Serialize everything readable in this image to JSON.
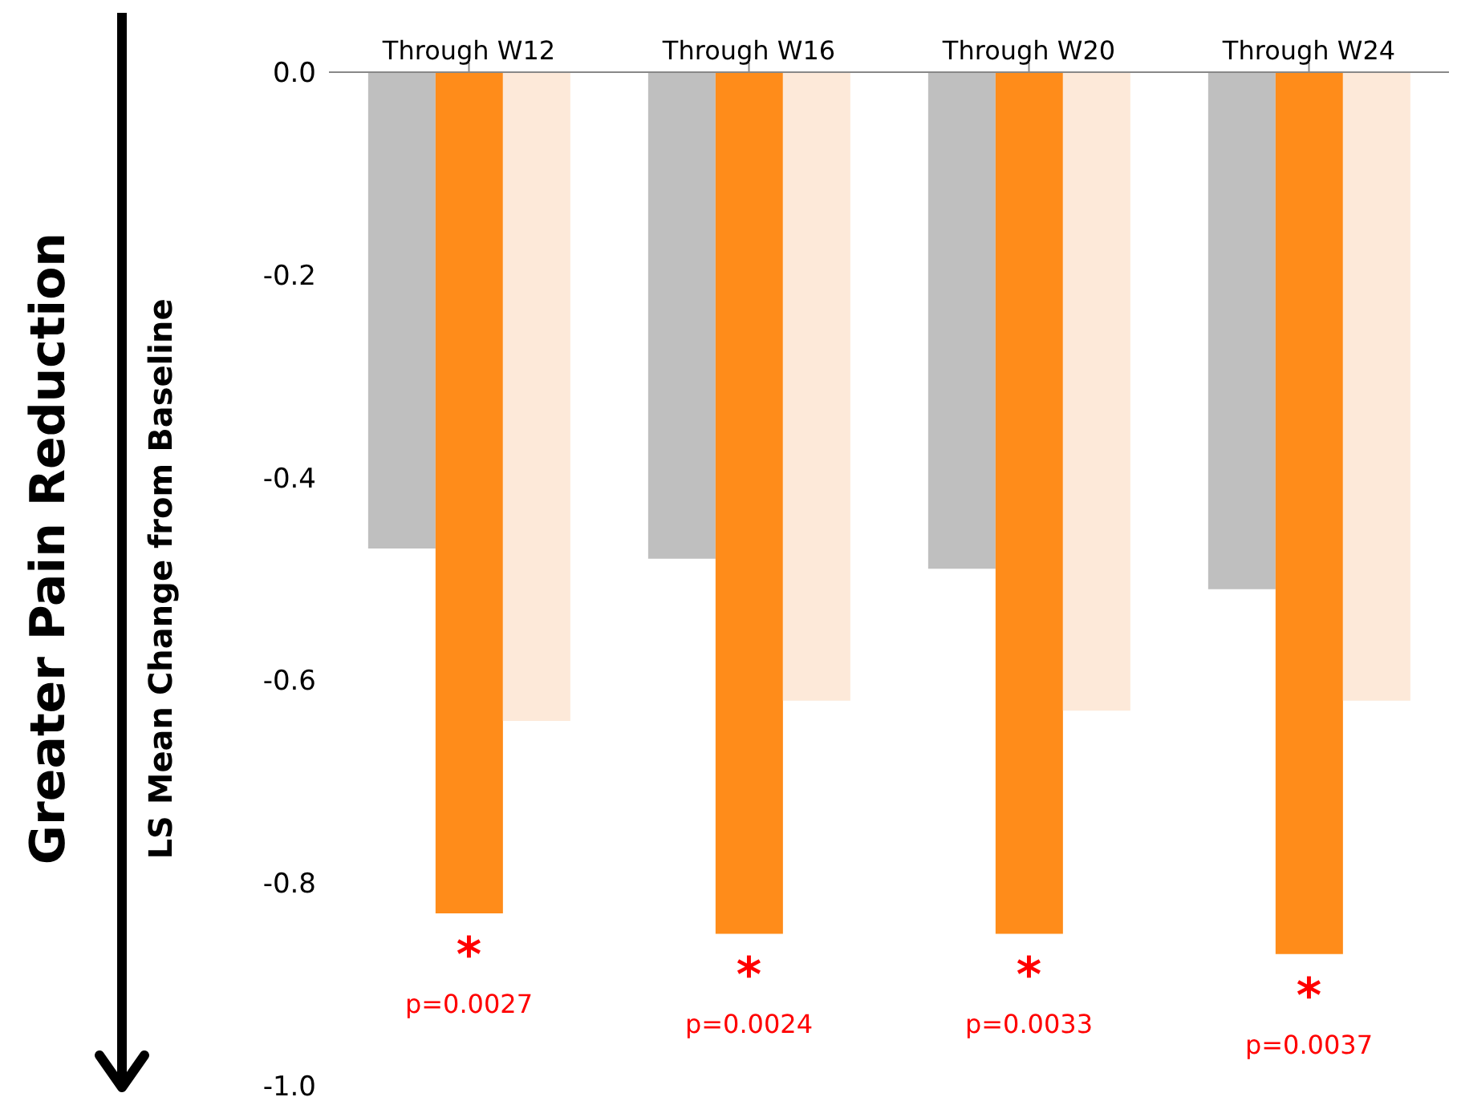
{
  "chart_data": {
    "type": "bar",
    "ylabel": "LS Mean Change from Baseline",
    "categories": [
      "Through W12",
      "Through W16",
      "Through W20",
      "Through W24"
    ],
    "series": [
      {
        "color": "#bfbfbf",
        "values": [
          -0.47,
          -0.48,
          -0.49,
          -0.51
        ]
      },
      {
        "color": "#ff8c1a",
        "values": [
          -0.83,
          -0.85,
          -0.85,
          -0.87
        ]
      },
      {
        "color": "#fde9d9",
        "values": [
          -0.64,
          -0.62,
          -0.63,
          -0.62
        ]
      }
    ],
    "ylim": [
      -1.0,
      0
    ],
    "yticks": [
      {
        "value": 0,
        "label": "0.0"
      },
      -0.2,
      -0.4,
      -0.6,
      -0.8,
      {
        "value": -1.0,
        "label": "-1.0"
      }
    ],
    "grid": false,
    "legend": false,
    "annotations": [
      "Greater Pain Reduction",
      {
        "text": "*",
        "x": "Through W12",
        "y": -0.83
      },
      {
        "text": "p=0.0027",
        "x": "Through W12",
        "y": -0.83
      },
      {
        "text": "*",
        "x": "Through W16",
        "y": -0.85
      },
      {
        "text": "p=0.0024",
        "x": "Through W16",
        "y": -0.85
      },
      {
        "text": "*",
        "x": "Through W20",
        "y": -0.85
      },
      {
        "text": "p=0.0033",
        "x": "Through W20",
        "y": -0.85
      },
      {
        "text": "*",
        "x": "Through W24",
        "y": -0.87
      },
      {
        "text": "p=0.0037",
        "x": "Through W24",
        "y": -0.87
      }
    ]
  }
}
